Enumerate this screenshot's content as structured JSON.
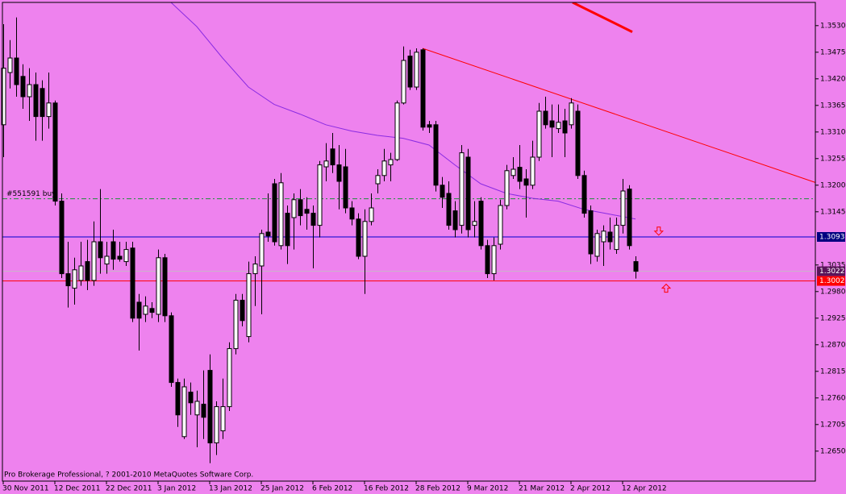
{
  "chart_data": {
    "type": "candlestick",
    "background": "#ee82ee",
    "up_color": "#ffffff",
    "down_color": "#000000",
    "categories": [
      "30 Nov 2011",
      null,
      null,
      null,
      null,
      null,
      null,
      null,
      "12 Dec 2011",
      null,
      null,
      null,
      null,
      null,
      null,
      null,
      "22 Dec 2011",
      null,
      null,
      null,
      null,
      null,
      null,
      null,
      "3 Jan 2012",
      null,
      null,
      null,
      null,
      null,
      null,
      null,
      "13 Jan 2012",
      null,
      null,
      null,
      null,
      null,
      null,
      null,
      "25 Jan 2012",
      null,
      null,
      null,
      null,
      null,
      null,
      null,
      "6 Feb 2012",
      null,
      null,
      null,
      null,
      null,
      null,
      null,
      "16 Feb 2012",
      null,
      null,
      null,
      null,
      null,
      null,
      null,
      "28 Feb 2012",
      null,
      null,
      null,
      null,
      null,
      null,
      null,
      "9 Mar 2012",
      null,
      null,
      null,
      null,
      null,
      null,
      null,
      "21 Mar 2012",
      null,
      null,
      null,
      null,
      null,
      null,
      null,
      "2 Apr 2012",
      null,
      null,
      null,
      null,
      null,
      null,
      null,
      "12 Apr 2012",
      null,
      null
    ],
    "open": [
      1.3325,
      1.3433,
      1.3463,
      1.3425,
      1.3383,
      1.3408,
      1.34,
      1.3342,
      1.337,
      1.3167,
      1.3017,
      1.2987,
      1.3003,
      1.3042,
      1.3003,
      1.3083,
      1.3037,
      1.3083,
      1.3053,
      1.3042,
      1.307,
      1.2958,
      1.2933,
      1.2945,
      1.2933,
      1.305,
      1.293,
      1.2792,
      1.268,
      1.2772,
      1.2725,
      1.2747,
      1.2817,
      1.2667,
      1.2692,
      1.2742,
      1.2862,
      1.2962,
      1.2887,
      1.3017,
      1.3033,
      1.3103,
      1.3203,
      1.3075,
      1.3142,
      1.3133,
      1.317,
      1.315,
      1.3142,
      1.3117,
      1.3238,
      1.3275,
      1.3242,
      1.3238,
      1.3153,
      1.313,
      1.3053,
      1.3125,
      1.3203,
      1.322,
      1.3242,
      1.3253,
      1.337,
      1.3467,
      1.3403,
      1.348,
      1.3325,
      1.3325,
      1.32,
      1.3183,
      1.3147,
      1.3117,
      1.3258,
      1.3117,
      1.3167,
      1.3075,
      1.3017,
      1.3078,
      1.3158,
      1.322,
      1.3237,
      1.3213,
      1.32,
      1.3258,
      1.3353,
      1.3333,
      1.3317,
      1.3333,
      1.3325,
      1.3353,
      1.322,
      1.3147,
      1.3053,
      1.3083,
      1.3103,
      1.3067,
      1.3117,
      1.3192,
      1.3042
    ],
    "high": [
      1.3533,
      1.35,
      1.3547,
      1.345,
      1.3442,
      1.3433,
      1.3417,
      1.3433,
      1.3375,
      1.3183,
      1.3083,
      1.305,
      1.3083,
      1.3087,
      1.3125,
      1.3192,
      1.3083,
      1.3108,
      1.3083,
      1.3083,
      1.3083,
      1.2975,
      1.297,
      1.2958,
      1.3067,
      1.3058,
      1.2937,
      1.28,
      1.28,
      1.2792,
      1.2775,
      1.2817,
      1.285,
      1.2753,
      1.28,
      1.2875,
      1.2975,
      1.2975,
      1.3042,
      1.3053,
      1.3108,
      1.3183,
      1.3213,
      1.3225,
      1.3158,
      1.3183,
      1.3192,
      1.3175,
      1.3158,
      1.325,
      1.3287,
      1.3308,
      1.3283,
      1.3275,
      1.3167,
      1.3142,
      1.315,
      1.3183,
      1.3233,
      1.3275,
      1.3267,
      1.3375,
      1.3487,
      1.348,
      1.3483,
      1.3483,
      1.3333,
      1.3333,
      1.3217,
      1.3208,
      1.3167,
      1.3283,
      1.3275,
      1.3167,
      1.3175,
      1.3087,
      1.3092,
      1.317,
      1.3242,
      1.3258,
      1.3283,
      1.3233,
      1.3292,
      1.337,
      1.3383,
      1.3367,
      1.3367,
      1.3358,
      1.338,
      1.3367,
      1.323,
      1.3158,
      1.3108,
      1.3117,
      1.3133,
      1.3133,
      1.3213,
      1.32,
      1.3053
    ],
    "low": [
      1.3258,
      1.34,
      1.3383,
      1.3358,
      1.3333,
      1.3292,
      1.3292,
      1.3317,
      1.3158,
      1.3008,
      1.2947,
      1.2953,
      1.2992,
      1.2983,
      1.2992,
      1.3017,
      1.3017,
      1.3025,
      1.3042,
      1.3033,
      1.2917,
      1.2858,
      1.2917,
      1.2925,
      1.2917,
      1.2917,
      1.2783,
      1.27,
      1.2675,
      1.2725,
      1.2658,
      1.2675,
      1.2625,
      1.2642,
      1.2675,
      1.2733,
      1.285,
      1.2908,
      1.2875,
      1.295,
      1.2933,
      1.3083,
      1.3075,
      1.3067,
      1.3037,
      1.3067,
      1.3117,
      1.3108,
      1.3028,
      1.3092,
      1.3208,
      1.3225,
      1.315,
      1.3142,
      1.3117,
      1.3047,
      1.2975,
      1.3117,
      1.3183,
      1.3208,
      1.3208,
      1.325,
      1.3367,
      1.3397,
      1.3397,
      1.3313,
      1.3308,
      1.3187,
      1.3153,
      1.3108,
      1.3092,
      1.31,
      1.3092,
      1.3092,
      1.3067,
      1.3008,
      1.3003,
      1.3067,
      1.315,
      1.3213,
      1.3192,
      1.3133,
      1.3192,
      1.325,
      1.3317,
      1.3258,
      1.3308,
      1.3258,
      1.3317,
      1.3213,
      1.3133,
      1.3037,
      1.3042,
      1.3033,
      1.3067,
      1.3058,
      1.31,
      1.3067,
      1.3007
    ],
    "close": [
      1.3442,
      1.3463,
      1.3408,
      1.3383,
      1.3408,
      1.3342,
      1.3342,
      1.337,
      1.3167,
      1.3017,
      1.2992,
      1.3025,
      1.3033,
      1.3003,
      1.3083,
      1.305,
      1.3053,
      1.3047,
      1.3047,
      1.3067,
      1.2925,
      1.2925,
      1.295,
      1.2937,
      1.305,
      1.293,
      1.2792,
      1.2725,
      1.2783,
      1.275,
      1.2753,
      1.272,
      1.2667,
      1.2742,
      1.2742,
      1.2862,
      1.2962,
      1.292,
      1.3017,
      1.3037,
      1.31,
      1.3095,
      1.3083,
      1.3205,
      1.3075,
      1.317,
      1.3137,
      1.3142,
      1.3117,
      1.3242,
      1.325,
      1.3242,
      1.3208,
      1.3153,
      1.313,
      1.3053,
      1.3125,
      1.3153,
      1.322,
      1.325,
      1.3253,
      1.337,
      1.3458,
      1.3403,
      1.3475,
      1.332,
      1.332,
      1.32,
      1.3175,
      1.3117,
      1.3108,
      1.3267,
      1.3108,
      1.3125,
      1.3075,
      1.3017,
      1.3075,
      1.3158,
      1.323,
      1.3233,
      1.3208,
      1.32,
      1.3258,
      1.3353,
      1.3325,
      1.332,
      1.333,
      1.3308,
      1.337,
      1.322,
      1.3142,
      1.3058,
      1.31,
      1.3105,
      1.3083,
      1.3117,
      1.3188,
      1.3075,
      1.3022
    ],
    "xlim": [
      -0.125,
      125.875
    ],
    "ylim": [
      1.2588,
      1.3578
    ],
    "yticks": [
      {
        "value": 1.353,
        "label": "1.3530"
      },
      1.3475,
      {
        "value": 1.342,
        "label": "1.3420"
      },
      1.3365,
      {
        "value": 1.331,
        "label": "1.3310"
      },
      1.3255,
      {
        "value": 1.32,
        "label": "1.3200"
      },
      1.3145,
      1.3035,
      {
        "value": 1.298,
        "label": "1.2980"
      },
      1.2925,
      {
        "value": 1.287,
        "label": "1.2870"
      },
      1.2815,
      {
        "value": 1.276,
        "label": "1.2760"
      },
      1.2705,
      {
        "value": 1.265,
        "label": "1.2650"
      }
    ],
    "ma": {
      "color": "#8a2be2",
      "x": [
        26,
        30,
        34,
        38,
        42,
        46,
        50,
        54,
        58,
        62,
        66,
        70,
        74,
        78,
        82,
        86,
        90,
        94,
        98
      ],
      "values": [
        1.3578,
        1.3528,
        1.3463,
        1.3403,
        1.3367,
        1.3347,
        1.3325,
        1.3312,
        1.3303,
        1.3297,
        1.3283,
        1.3242,
        1.3203,
        1.3183,
        1.3173,
        1.3167,
        1.315,
        1.314,
        1.313
      ]
    },
    "trendlines": [
      {
        "color": "#ff0000",
        "width": 1,
        "x": [
          65,
          126
        ],
        "values": [
          1.3483,
          1.3205
        ]
      },
      {
        "color": "#ff0000",
        "width": 3,
        "x": [
          88.25,
          97.5
        ],
        "values": [
          1.3578,
          1.3517
        ]
      }
    ],
    "hlines": [
      {
        "value": 1.3172,
        "color": "#1f8f3a",
        "dash": "6 3 2 3",
        "label": "#551591 buy"
      },
      {
        "value": 1.3093,
        "color": "#0000cd",
        "tag_color": "#000080"
      },
      {
        "value": 1.3022,
        "color": "#c8b4c8",
        "tag_color": "#5a145a"
      },
      {
        "value": 1.3002,
        "color": "#ff0000",
        "tag_color": "#ff0000"
      }
    ],
    "arrows": [
      {
        "x": 101.6,
        "value": 1.3105,
        "dir": "down",
        "color": "#ff0000"
      },
      {
        "x": 102.75,
        "value": 1.2987,
        "dir": "up",
        "color": "#ff0000"
      }
    ],
    "copyright": "Pro Brokerage Professional, ? 2001-2010 MetaQuotes Software Corp."
  }
}
